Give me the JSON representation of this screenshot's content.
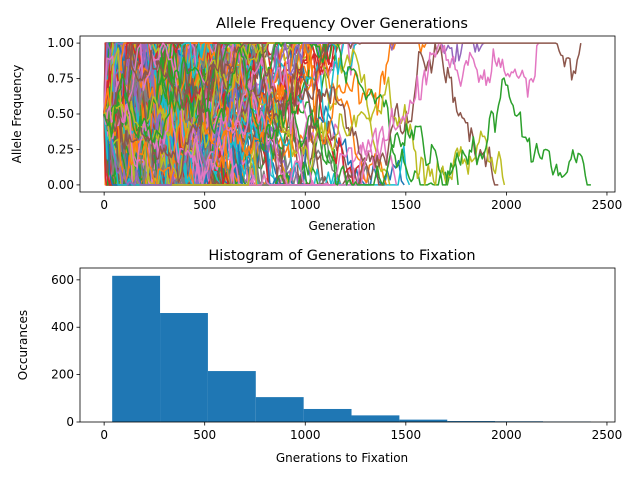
{
  "chart_data": [
    {
      "type": "line",
      "title": "Allele Frequency Over Generations",
      "xlabel": "Generation",
      "ylabel": "Allele Frequency",
      "xlim": [
        -120,
        2540
      ],
      "ylim": [
        -0.05,
        1.05
      ],
      "xticks": [
        0,
        500,
        1000,
        1500,
        2000,
        2500
      ],
      "yticks": [
        0.0,
        0.25,
        0.5,
        0.75,
        1.0
      ],
      "xtick_labels": [
        "0",
        "500",
        "1000",
        "1500",
        "2000",
        "2500"
      ],
      "ytick_labels": [
        "0.00",
        "0.25",
        "0.50",
        "0.75",
        "1.00"
      ],
      "series_count": 1500,
      "series_colors": [
        "#1f77b4",
        "#ff7f0e",
        "#2ca02c",
        "#d62728",
        "#9467bd",
        "#8c564b",
        "#e377c2",
        "#7f7f7f",
        "#bcbd22",
        "#17becf"
      ],
      "example_series": [
        {
          "color": "#2ca02c",
          "end_generation": 2420,
          "final_value": 0.0
        },
        {
          "color": "#8c564b",
          "end_generation": 2370,
          "final_value": 1.0
        },
        {
          "color": "#e377c2",
          "end_generation": 2160,
          "final_value": 1.0
        },
        {
          "color": "#bcbd22",
          "end_generation": 1990,
          "final_value": 0.0
        },
        {
          "color": "#8c564b",
          "end_generation": 1960,
          "final_value": 0.0
        },
        {
          "color": "#9467bd",
          "end_generation": 1890,
          "final_value": 1.0
        },
        {
          "color": "#2ca02c",
          "end_generation": 1760,
          "final_value": 0.0
        },
        {
          "color": "#ff7f0e",
          "end_generation": 1610,
          "final_value": 1.0
        }
      ]
    },
    {
      "type": "bar",
      "title": "Histogram of Generations to Fixation",
      "xlabel": "Gnerations to Fixation",
      "ylabel": "Occurances",
      "xlim": [
        -120,
        2540
      ],
      "ylim": [
        0,
        650
      ],
      "xticks": [
        0,
        500,
        1000,
        1500,
        2000,
        2500
      ],
      "yticks": [
        0,
        200,
        400,
        600
      ],
      "xtick_labels": [
        "0",
        "500",
        "1000",
        "1500",
        "2000",
        "2500"
      ],
      "ytick_labels": [
        "0",
        "200",
        "400",
        "600"
      ],
      "color": "#1f77b4",
      "bin_edges": [
        40,
        278,
        516,
        754,
        992,
        1230,
        1468,
        1706,
        1944,
        2182,
        2420
      ],
      "values": [
        617,
        460,
        215,
        105,
        55,
        28,
        10,
        4,
        3,
        2
      ]
    }
  ]
}
